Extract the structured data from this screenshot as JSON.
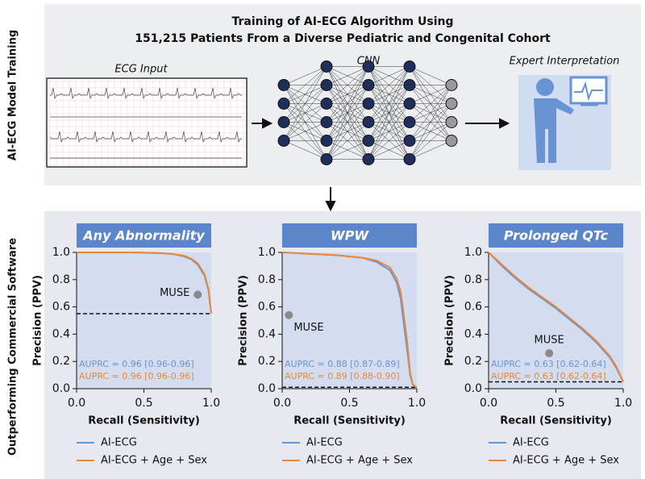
{
  "training": {
    "side_label": "AI-ECG Model Training",
    "title": [
      "Training of AI-ECG Algorithm Using",
      "151,215 Patients From a Diverse Pediatric and Congenital Cohort"
    ],
    "ecg_label": "ECG Input",
    "cnn_label": "CNN",
    "expert_label": "Expert Interpretation"
  },
  "results": {
    "side_label": "Outperforming Commercial Software"
  },
  "chart_data": [
    {
      "type": "line",
      "title": "Any Abnormality",
      "xlabel": "Recall (Sensitivity)",
      "ylabel": "Precision (PPV)",
      "xlim": [
        0,
        1
      ],
      "ylim": [
        0,
        1
      ],
      "xticks": [
        {
          "value": 0,
          "label": "0.0"
        },
        0.5,
        {
          "value": 1,
          "label": "1.0"
        }
      ],
      "yticks": [
        {
          "value": 0,
          "label": "0.0"
        },
        0.2,
        0.4,
        0.6,
        0.8,
        {
          "value": 1,
          "label": "1.0"
        }
      ],
      "baseline": 0.55,
      "muse": {
        "label": "MUSE",
        "x": 0.9,
        "y": 0.69
      },
      "series": [
        {
          "name": "AI-ECG",
          "color": "#6a93d4",
          "annotation": "AUPRC = 0.96 [0.96-0.96]",
          "x": [
            0,
            0.2,
            0.4,
            0.6,
            0.7,
            0.8,
            0.85,
            0.9,
            0.95,
            0.98,
            1.0
          ],
          "values": [
            1,
            1,
            1,
            0.995,
            0.99,
            0.97,
            0.95,
            0.91,
            0.83,
            0.72,
            0.55
          ]
        },
        {
          "name": "AI-ECG + Age + Sex",
          "color": "#e8883a",
          "annotation": "AUPRC = 0.96 [0.96-0.96]",
          "x": [
            0,
            0.2,
            0.4,
            0.6,
            0.7,
            0.8,
            0.85,
            0.9,
            0.95,
            0.98,
            1.0
          ],
          "values": [
            1,
            1,
            1,
            0.996,
            0.99,
            0.975,
            0.955,
            0.92,
            0.84,
            0.73,
            0.55
          ]
        }
      ]
    },
    {
      "type": "line",
      "title": "WPW",
      "xlabel": "Recall (Sensitivity)",
      "ylabel": "Precision (PPV)",
      "xlim": [
        0,
        1
      ],
      "ylim": [
        0,
        1
      ],
      "xticks": [
        {
          "value": 0,
          "label": "0.0"
        },
        0.5,
        {
          "value": 1,
          "label": "1.0"
        }
      ],
      "yticks": [
        {
          "value": 0,
          "label": "0.0"
        },
        0.2,
        0.4,
        0.6,
        0.8,
        {
          "value": 1,
          "label": "1.0"
        }
      ],
      "baseline": 0.01,
      "muse": {
        "label": "MUSE",
        "x": 0.05,
        "y": 0.54
      },
      "series": [
        {
          "name": "AI-ECG",
          "color": "#6a93d4",
          "annotation": "AUPRC = 0.88 [0.87-0.89]",
          "x": [
            0,
            0.2,
            0.4,
            0.6,
            0.7,
            0.8,
            0.85,
            0.88,
            0.9,
            0.93,
            0.95,
            0.97,
            1.0
          ],
          "values": [
            1,
            0.99,
            0.98,
            0.96,
            0.93,
            0.87,
            0.78,
            0.66,
            0.5,
            0.27,
            0.1,
            0.03,
            0.01
          ]
        },
        {
          "name": "AI-ECG + Age + Sex",
          "color": "#e8883a",
          "annotation": "AUPRC = 0.89 [0.88-0.90]",
          "x": [
            0,
            0.2,
            0.4,
            0.6,
            0.7,
            0.8,
            0.85,
            0.88,
            0.9,
            0.93,
            0.95,
            0.97,
            1.0
          ],
          "values": [
            1,
            0.99,
            0.98,
            0.96,
            0.94,
            0.89,
            0.81,
            0.71,
            0.57,
            0.33,
            0.12,
            0.03,
            0.01
          ]
        }
      ]
    },
    {
      "type": "line",
      "title": "Prolonged QTc",
      "xlabel": "Recall (Sensitivity)",
      "ylabel": "Precision (PPV)",
      "xlim": [
        0,
        1
      ],
      "ylim": [
        0,
        1
      ],
      "xticks": [
        {
          "value": 0,
          "label": "0.0"
        },
        0.5,
        {
          "value": 1,
          "label": "1.0"
        }
      ],
      "yticks": [
        {
          "value": 0,
          "label": "0.0"
        },
        0.2,
        0.4,
        0.6,
        0.8,
        {
          "value": 1,
          "label": "1.0"
        }
      ],
      "baseline": 0.05,
      "muse": {
        "label": "MUSE",
        "x": 0.45,
        "y": 0.26
      },
      "series": [
        {
          "name": "AI-ECG",
          "color": "#6a93d4",
          "annotation": "AUPRC = 0.63 [0.62-0.64]",
          "x": [
            0,
            0.1,
            0.2,
            0.3,
            0.4,
            0.5,
            0.6,
            0.7,
            0.8,
            0.9,
            0.95,
            1.0
          ],
          "values": [
            1,
            0.9,
            0.81,
            0.73,
            0.66,
            0.59,
            0.51,
            0.43,
            0.34,
            0.23,
            0.15,
            0.05
          ]
        },
        {
          "name": "AI-ECG + Age + Sex",
          "color": "#e8883a",
          "annotation": "AUPRC = 0.63 [0.62-0.64]",
          "x": [
            0,
            0.1,
            0.2,
            0.3,
            0.4,
            0.5,
            0.6,
            0.7,
            0.8,
            0.9,
            0.95,
            1.0
          ],
          "values": [
            1,
            0.91,
            0.82,
            0.74,
            0.67,
            0.6,
            0.52,
            0.44,
            0.35,
            0.24,
            0.16,
            0.05
          ]
        }
      ]
    }
  ]
}
